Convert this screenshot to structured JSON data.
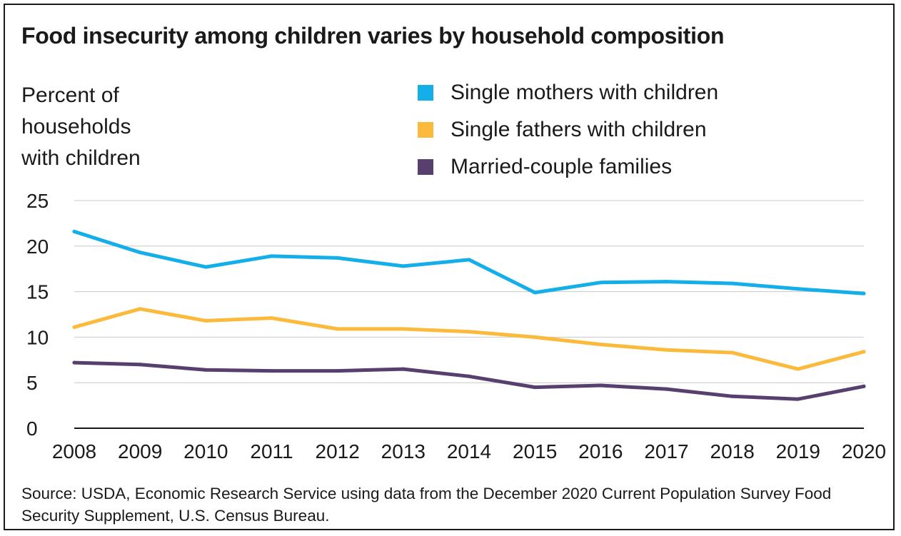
{
  "chart_data": {
    "type": "line",
    "title": "Food insecurity among children varies by household composition",
    "ylabel": "Percent of\nhouseholds\nwith children",
    "xlabel": "",
    "x": [
      "2008",
      "2009",
      "2010",
      "2011",
      "2012",
      "2013",
      "2014",
      "2015",
      "2016",
      "2017",
      "2018",
      "2019",
      "2020"
    ],
    "ylim": [
      0,
      25
    ],
    "yticks": [
      0,
      5,
      10,
      15,
      20,
      25
    ],
    "grid": true,
    "legend_position": "top-right",
    "series": [
      {
        "name": "Single mothers with children",
        "color": "#14aee9",
        "values": [
          21.6,
          19.3,
          17.7,
          18.9,
          18.7,
          17.8,
          18.5,
          14.9,
          16.0,
          16.1,
          15.9,
          15.3,
          14.8
        ]
      },
      {
        "name": "Single fathers with children",
        "color": "#fbba3b",
        "values": [
          11.1,
          13.1,
          11.8,
          12.1,
          10.9,
          10.9,
          10.6,
          10.0,
          9.2,
          8.6,
          8.3,
          6.5,
          8.4
        ]
      },
      {
        "name": "Married-couple families",
        "color": "#57406e",
        "values": [
          7.2,
          7.0,
          6.4,
          6.3,
          6.3,
          6.5,
          5.7,
          4.5,
          4.7,
          4.3,
          3.5,
          3.2,
          4.6
        ]
      }
    ],
    "source": "Source: USDA, Economic Research Service using data from the December 2020 Current Population Survey Food Security Supplement, U.S. Census Bureau."
  }
}
